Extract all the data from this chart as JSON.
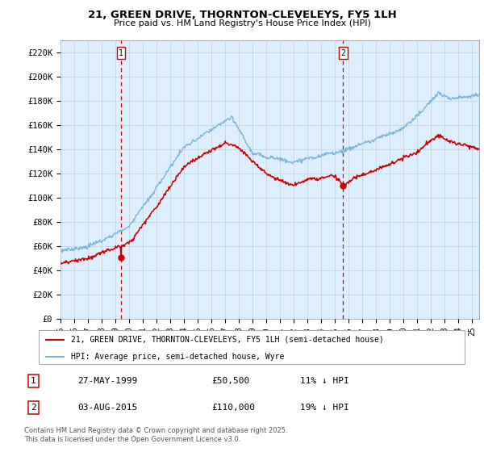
{
  "title": "21, GREEN DRIVE, THORNTON-CLEVELEYS, FY5 1LH",
  "subtitle": "Price paid vs. HM Land Registry's House Price Index (HPI)",
  "ylabel_ticks": [
    "£0",
    "£20K",
    "£40K",
    "£60K",
    "£80K",
    "£100K",
    "£120K",
    "£140K",
    "£160K",
    "£180K",
    "£200K",
    "£220K"
  ],
  "ytick_values": [
    0,
    20000,
    40000,
    60000,
    80000,
    100000,
    120000,
    140000,
    160000,
    180000,
    200000,
    220000
  ],
  "ylim": [
    0,
    230000
  ],
  "hpi_color": "#7ab4d8",
  "price_color": "#cc0000",
  "bg_color": "#ddeeff",
  "marker1_year": 1999.41,
  "marker2_year": 2015.59,
  "legend_property": "21, GREEN DRIVE, THORNTON-CLEVELEYS, FY5 1LH (semi-detached house)",
  "legend_hpi": "HPI: Average price, semi-detached house, Wyre",
  "sale1_date": "27-MAY-1999",
  "sale1_price": "£50,500",
  "sale1_hpi": "11% ↓ HPI",
  "sale2_date": "03-AUG-2015",
  "sale2_price": "£110,000",
  "sale2_hpi": "19% ↓ HPI",
  "footer": "Contains HM Land Registry data © Crown copyright and database right 2025.\nThis data is licensed under the Open Government Licence v3.0.",
  "xmin": 1995.0,
  "xmax": 2025.5,
  "sale1_price_val": 50500,
  "sale2_price_val": 110000
}
